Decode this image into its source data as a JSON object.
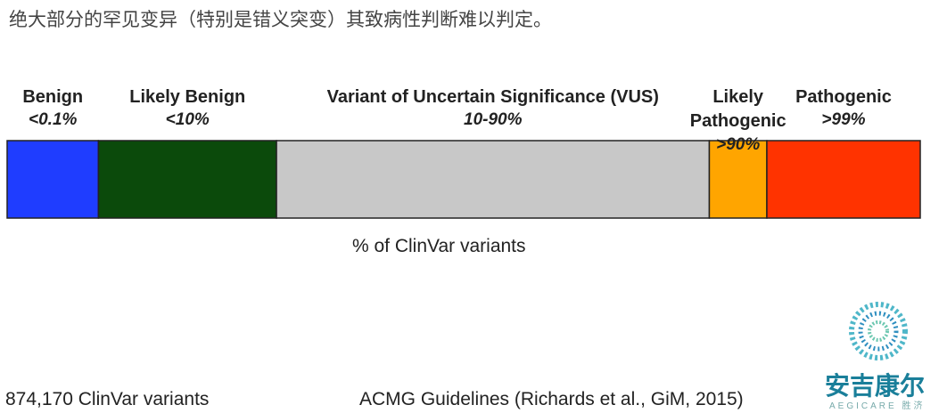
{
  "header": {
    "title": "绝大部分的罕见变异（特别是错义突变）其致病性判断难以判定。"
  },
  "chart_data": {
    "type": "stacked_bar",
    "categories": [
      "Benign",
      "Likely Benign",
      "Variant of Uncertain Significance (VUS)",
      "Likely Pathogenic",
      "Pathogenic"
    ],
    "category_notes": [
      "<0.1%",
      "<10%",
      "10-90%",
      ">90%",
      ">99%"
    ],
    "values": [
      10,
      19.5,
      47.4,
      6.3,
      16.8
    ],
    "colors": [
      "#1f3dff",
      "#0b4a0b",
      "#c8c8c8",
      "#ffa500",
      "#ff3300"
    ],
    "xlim": [
      0,
      100
    ],
    "x_label": "% of ClinVar variants"
  },
  "footer": {
    "left": "874,170 ClinVar variants",
    "right": "ACMG Guidelines (Richards et al., GiM, 2015)"
  },
  "logo": {
    "name": "安吉康尔",
    "sub": "AEGICARE 胜济"
  }
}
